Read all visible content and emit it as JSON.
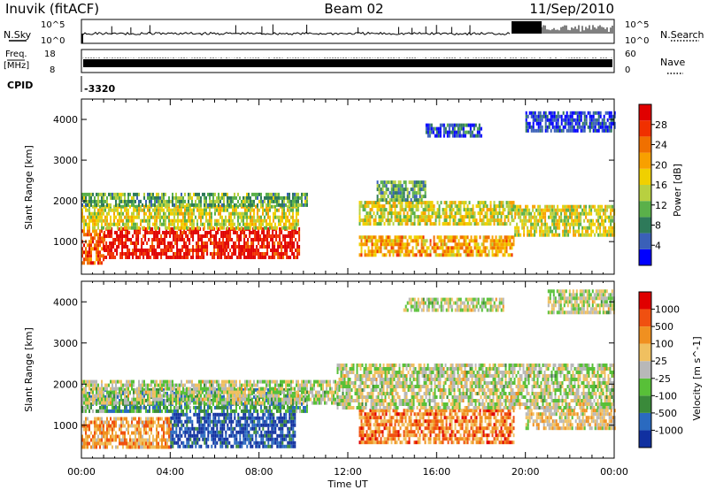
{
  "header": {
    "station": "Inuvik (fitACF)",
    "beam": "Beam 02",
    "date": "11/Sep/2010"
  },
  "top_panels": {
    "nsky_label": "N.Sky",
    "nsky_ticks": [
      "10^5",
      "10^0"
    ],
    "nsearch_label": "N.Search",
    "nsearch_ticks": [
      "10^5",
      "10^0"
    ],
    "freq_label": "Freq.",
    "freq_unit": "[MHz]",
    "freq_ticks": [
      "18",
      "8"
    ],
    "nave_label": "Nave",
    "nave_ticks": [
      "60",
      "0"
    ],
    "cpid_label": "CPID",
    "cpid_value": "-3320"
  },
  "chart_data": [
    {
      "type": "heatmap",
      "name": "power",
      "ylabel": "Slant Range [km]",
      "ylim": [
        200,
        4500
      ],
      "yticks": [
        1000,
        2000,
        3000,
        4000
      ],
      "xlim": [
        0,
        24
      ],
      "colorbar": {
        "label": "Power [dB]",
        "ticks": [
          "4",
          "8",
          "12",
          "16",
          "20",
          "24",
          "28"
        ],
        "colors": [
          "#0000ff",
          "#3a60b8",
          "#2e7a5a",
          "#5ab04a",
          "#b8d040",
          "#f0d000",
          "#f8a000",
          "#f07000",
          "#f03000",
          "#e00000"
        ]
      },
      "bands": [
        {
          "t0": 0.0,
          "t1": 1.0,
          "r0": 500,
          "r1": 1300,
          "level": 0.8
        },
        {
          "t0": 1.0,
          "t1": 9.8,
          "r0": 600,
          "r1": 1350,
          "level": 0.95
        },
        {
          "t0": 0.0,
          "t1": 9.8,
          "r0": 1350,
          "r1": 1900,
          "level": 0.5
        },
        {
          "t0": 0.0,
          "t1": 10.2,
          "r0": 1900,
          "r1": 2200,
          "level": 0.35
        },
        {
          "t0": 12.5,
          "t1": 19.5,
          "r0": 650,
          "r1": 1150,
          "level": 0.65
        },
        {
          "t0": 12.5,
          "t1": 19.5,
          "r0": 1450,
          "r1": 2000,
          "level": 0.5
        },
        {
          "t0": 13.3,
          "t1": 15.5,
          "r0": 2000,
          "r1": 2500,
          "level": 0.3
        },
        {
          "t0": 19.5,
          "t1": 24.0,
          "r0": 1200,
          "r1": 1900,
          "level": 0.5
        },
        {
          "t0": 15.5,
          "t1": 18.0,
          "r0": 3600,
          "r1": 3900,
          "level": 0.15
        },
        {
          "t0": 20.0,
          "t1": 24.0,
          "r0": 3700,
          "r1": 4200,
          "level": 0.12
        }
      ]
    },
    {
      "type": "heatmap",
      "name": "velocity",
      "ylabel": "Slant Range [km]",
      "xlabel": "Time UT",
      "ylim": [
        200,
        4500
      ],
      "yticks": [
        1000,
        2000,
        3000,
        4000
      ],
      "xlim": [
        0,
        24
      ],
      "xticks": [
        "00:00",
        "04:00",
        "08:00",
        "12:00",
        "16:00",
        "20:00",
        "00:00"
      ],
      "colorbar": {
        "label": "Velocity [m s^-1]",
        "ticks": [
          "1000",
          "500",
          "100",
          "25",
          "-25",
          "-100",
          "-500",
          "-1000"
        ],
        "colors": [
          "#1030a0",
          "#2a6ac0",
          "#3a8a3a",
          "#58c038",
          "#b8b8b8",
          "#f0c060",
          "#f09020",
          "#f05010",
          "#e00000"
        ]
      },
      "bands": [
        {
          "t0": 0.0,
          "t1": 4.0,
          "r0": 500,
          "r1": 1200,
          "level": 0.7
        },
        {
          "t0": 4.0,
          "t1": 9.6,
          "r0": 500,
          "r1": 1300,
          "level": 0.1
        },
        {
          "t0": 0.0,
          "t1": 10.2,
          "r0": 1300,
          "r1": 1900,
          "level": 0.3
        },
        {
          "t0": 0.0,
          "t1": 11.5,
          "r0": 1500,
          "r1": 2100,
          "level": 0.5
        },
        {
          "t0": 12.5,
          "t1": 19.5,
          "r0": 600,
          "r1": 1400,
          "level": 0.75
        },
        {
          "t0": 11.5,
          "t1": 24.0,
          "r0": 1400,
          "r1": 2500,
          "level": 0.5
        },
        {
          "t0": 20.0,
          "t1": 24.0,
          "r0": 900,
          "r1": 1400,
          "level": 0.6
        },
        {
          "t0": 14.5,
          "t1": 19.0,
          "r0": 3800,
          "r1": 4100,
          "level": 0.5
        },
        {
          "t0": 21.0,
          "t1": 24.0,
          "r0": 3700,
          "r1": 4300,
          "level": 0.5
        }
      ]
    }
  ]
}
